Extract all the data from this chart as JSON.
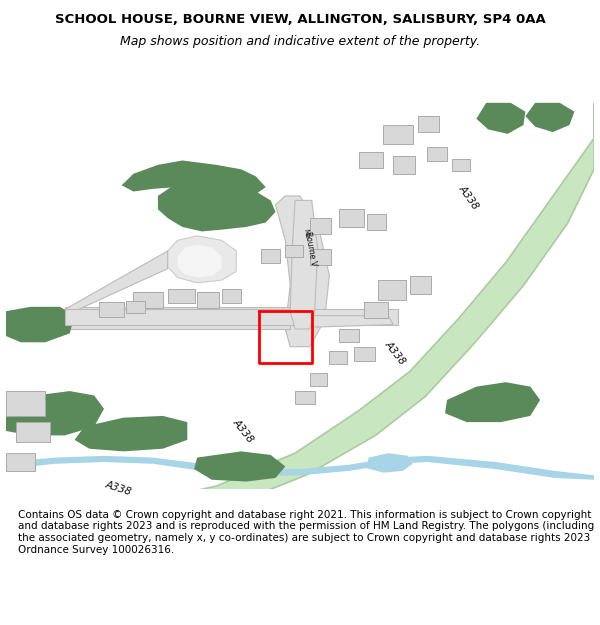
{
  "title": "SCHOOL HOUSE, BOURNE VIEW, ALLINGTON, SALISBURY, SP4 0AA",
  "subtitle": "Map shows position and indicative extent of the property.",
  "footer": "Contains OS data © Crown copyright and database right 2021. This information is subject to Crown copyright and database rights 2023 and is reproduced with the permission of HM Land Registry. The polygons (including the associated geometry, namely x, y co-ordinates) are subject to Crown copyright and database rights 2023 Ordnance Survey 100026316.",
  "bg_color": "#ffffff",
  "map_bg": "#f8f8f8",
  "road_main_color": "#c8e6c0",
  "road_main_edge": "#aacba0",
  "road_minor_color": "#e8e8e8",
  "road_minor_edge": "#cccccc",
  "building_color": "#d8d8d8",
  "building_edge": "#aaaaaa",
  "vegetation_color": "#5a8a5a",
  "water_color": "#a8d4e8",
  "property_color": "#ff0000",
  "road_label_color": "#000000",
  "title_fontsize": 9.5,
  "subtitle_fontsize": 9,
  "footer_fontsize": 7.5
}
